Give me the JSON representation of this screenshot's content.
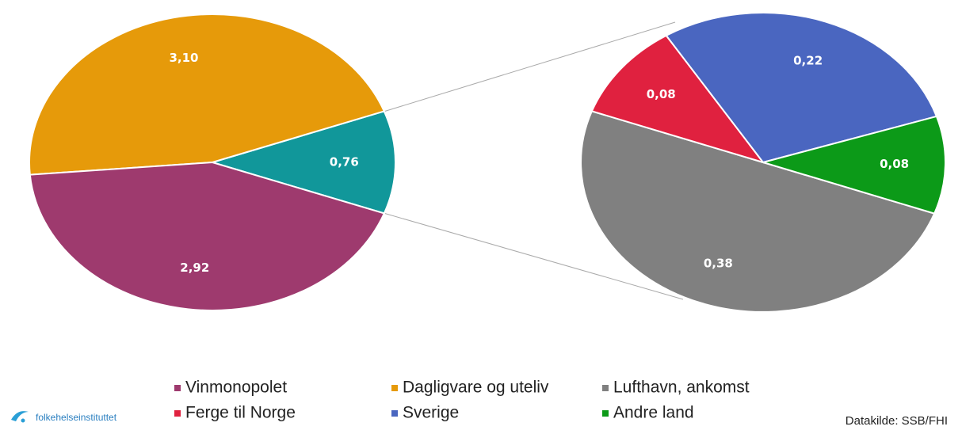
{
  "chart_data": [
    {
      "type": "pie",
      "categories": [
        "Vinmonopolet",
        "Dagligvare og uteliv",
        null
      ],
      "values": [
        2.92,
        3.1,
        0.76
      ],
      "value_labels": [
        "2,92",
        "3,10",
        "0,76"
      ],
      "colors": [
        "#9e3a6e",
        "#e69a0a",
        "#11979a"
      ]
    },
    {
      "type": "pie",
      "categories": [
        "Lufthavn, ankomst",
        "Ferge til Norge",
        "Sverige",
        "Andre land"
      ],
      "values": [
        0.38,
        0.08,
        0.22,
        0.08
      ],
      "value_labels": [
        "0,38",
        "0,08",
        "0,22",
        "0,08"
      ],
      "colors": [
        "#808080",
        "#e0213f",
        "#4a66c0",
        "#0c9a18"
      ]
    }
  ],
  "source": "Datakilde: SSB/FHI",
  "logo_text": "folkehelseinstituttet"
}
